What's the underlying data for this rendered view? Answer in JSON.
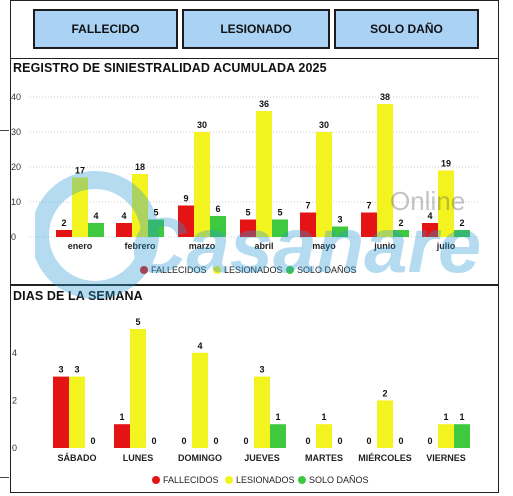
{
  "buttons": [
    {
      "label": "FALLECIDO"
    },
    {
      "label": "LESIONADO"
    },
    {
      "label": "SOLO DAÑO"
    }
  ],
  "watermark": "Casanare Online",
  "colors": {
    "fallecidos": "#e41414",
    "lesionados": "#f3f31f",
    "solo_danos": "#3ec93e",
    "button_bg": "#a9d2f5"
  },
  "chart_data": [
    {
      "type": "bar",
      "title": "REGISTRO DE SINIESTRALIDAD ACUMULADA 2025",
      "categories": [
        "enero",
        "febrero",
        "marzo",
        "abril",
        "mayo",
        "junio",
        "julio"
      ],
      "series": [
        {
          "name": "FALLECIDOS",
          "values": [
            2,
            4,
            9,
            5,
            7,
            7,
            4
          ]
        },
        {
          "name": "LESIONADOS",
          "values": [
            17,
            18,
            30,
            36,
            30,
            38,
            19
          ]
        },
        {
          "name": "SOLO DAÑOS",
          "values": [
            4,
            5,
            6,
            5,
            3,
            2,
            2
          ]
        }
      ],
      "ylim": [
        0,
        40
      ],
      "yticks": [
        0,
        10,
        20,
        30,
        40
      ],
      "grid": true,
      "legend": "bottom"
    },
    {
      "type": "bar",
      "title": "DIAS DE LA SEMANA",
      "categories": [
        "SÁBADO",
        "LUNES",
        "DOMINGO",
        "JUEVES",
        "MARTES",
        "MIÉRCOLES",
        "VIERNES"
      ],
      "series": [
        {
          "name": "FALLECIDOS",
          "values": [
            3,
            1,
            0,
            0,
            0,
            0,
            0
          ]
        },
        {
          "name": "LESIONADOS",
          "values": [
            3,
            5,
            4,
            3,
            1,
            2,
            1
          ]
        },
        {
          "name": "SOLO DAÑOS",
          "values": [
            0,
            0,
            0,
            1,
            0,
            0,
            1
          ]
        }
      ],
      "ylim": [
        0,
        5
      ],
      "yticks": [
        0,
        2,
        4
      ],
      "grid": false,
      "legend": "bottom"
    }
  ]
}
